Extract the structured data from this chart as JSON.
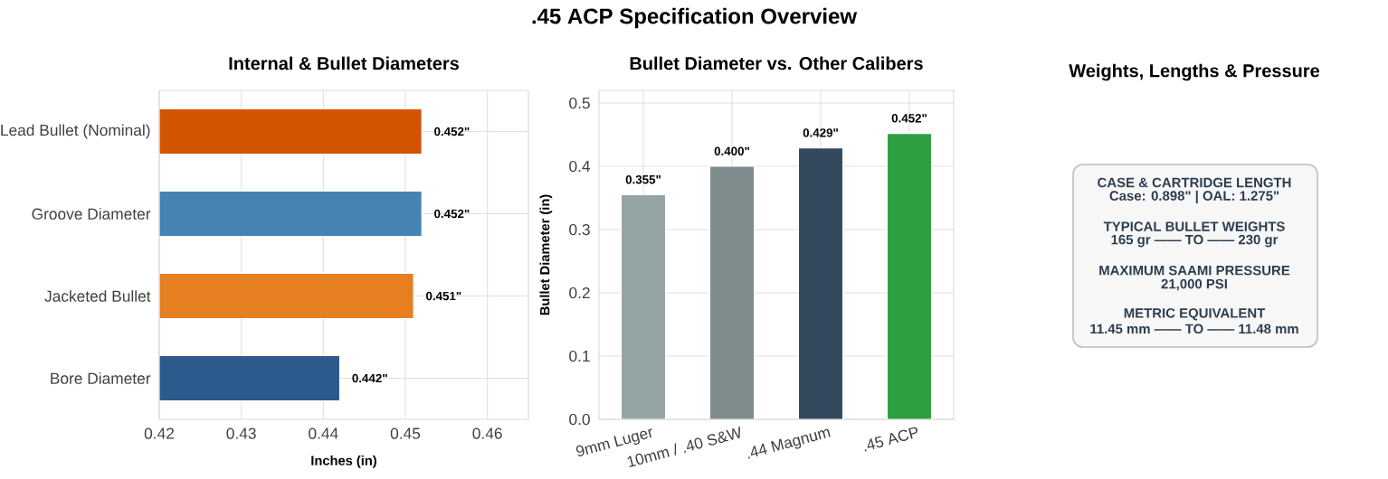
{
  "chart_data": [
    {
      "type": "bar",
      "orientation": "horizontal",
      "title": "Internal & Bullet Diameters",
      "xlabel": "Inches (in)",
      "annotations": [
        ".45 ACP Specification Overview"
      ],
      "categories": [
        "Lead Bullet (Nominal)",
        "Groove Diameter",
        "Jacketed Bullet",
        "Bore Diameter"
      ],
      "values": [
        0.452,
        0.452,
        0.451,
        0.442
      ],
      "colors": [
        "#d35400",
        "#4682b4",
        "#e67e22",
        "#2c5a8c"
      ],
      "value_labels": [
        "0.452\"",
        "0.452\"",
        "0.451\"",
        "0.442\""
      ],
      "xlim": [
        0.42,
        0.465
      ],
      "xticks": [
        0.42,
        0.43,
        0.44,
        0.45,
        0.46
      ],
      "grid": true
    },
    {
      "type": "bar",
      "title": "Bullet Diameter vs. Other Calibers",
      "ylabel": "Bullet Diameter (in)",
      "categories": [
        "9mm Luger",
        "10mm / .40 S&W",
        ".44 Magnum",
        ".45 ACP"
      ],
      "values": [
        0.355,
        0.4,
        0.429,
        0.452
      ],
      "colors": [
        "#95a5a6",
        "#7f8c8d",
        "#34495e",
        "#2ea043"
      ],
      "value_labels": [
        "0.355\"",
        "0.400\"",
        "0.429\"",
        "0.452\""
      ],
      "ylim": [
        0,
        0.52
      ],
      "yticks": [
        {
          "value": 0,
          "label": "0.0"
        },
        {
          "value": 0.1,
          "label": "0.1"
        },
        {
          "value": 0.2,
          "label": "0.2"
        },
        {
          "value": 0.3,
          "label": "0.3"
        },
        {
          "value": 0.4,
          "label": "0.4"
        },
        {
          "value": 0.5,
          "label": "0.5"
        }
      ],
      "grid": true
    },
    {
      "type": "other",
      "title": "Weights, Lengths & Pressure",
      "annotations": [
        "CASE & CARTRIDGE LENGTH",
        "Case: 0.898\" | OAL: 1.275\"",
        "TYPICAL BULLET WEIGHTS",
        "165 gr —— TO —— 230 gr",
        "MAXIMUM SAAMI PRESSURE",
        "21,000 PSI",
        "METRIC EQUIVALENT",
        "11.45 mm —— TO —— 11.48 mm"
      ]
    }
  ]
}
